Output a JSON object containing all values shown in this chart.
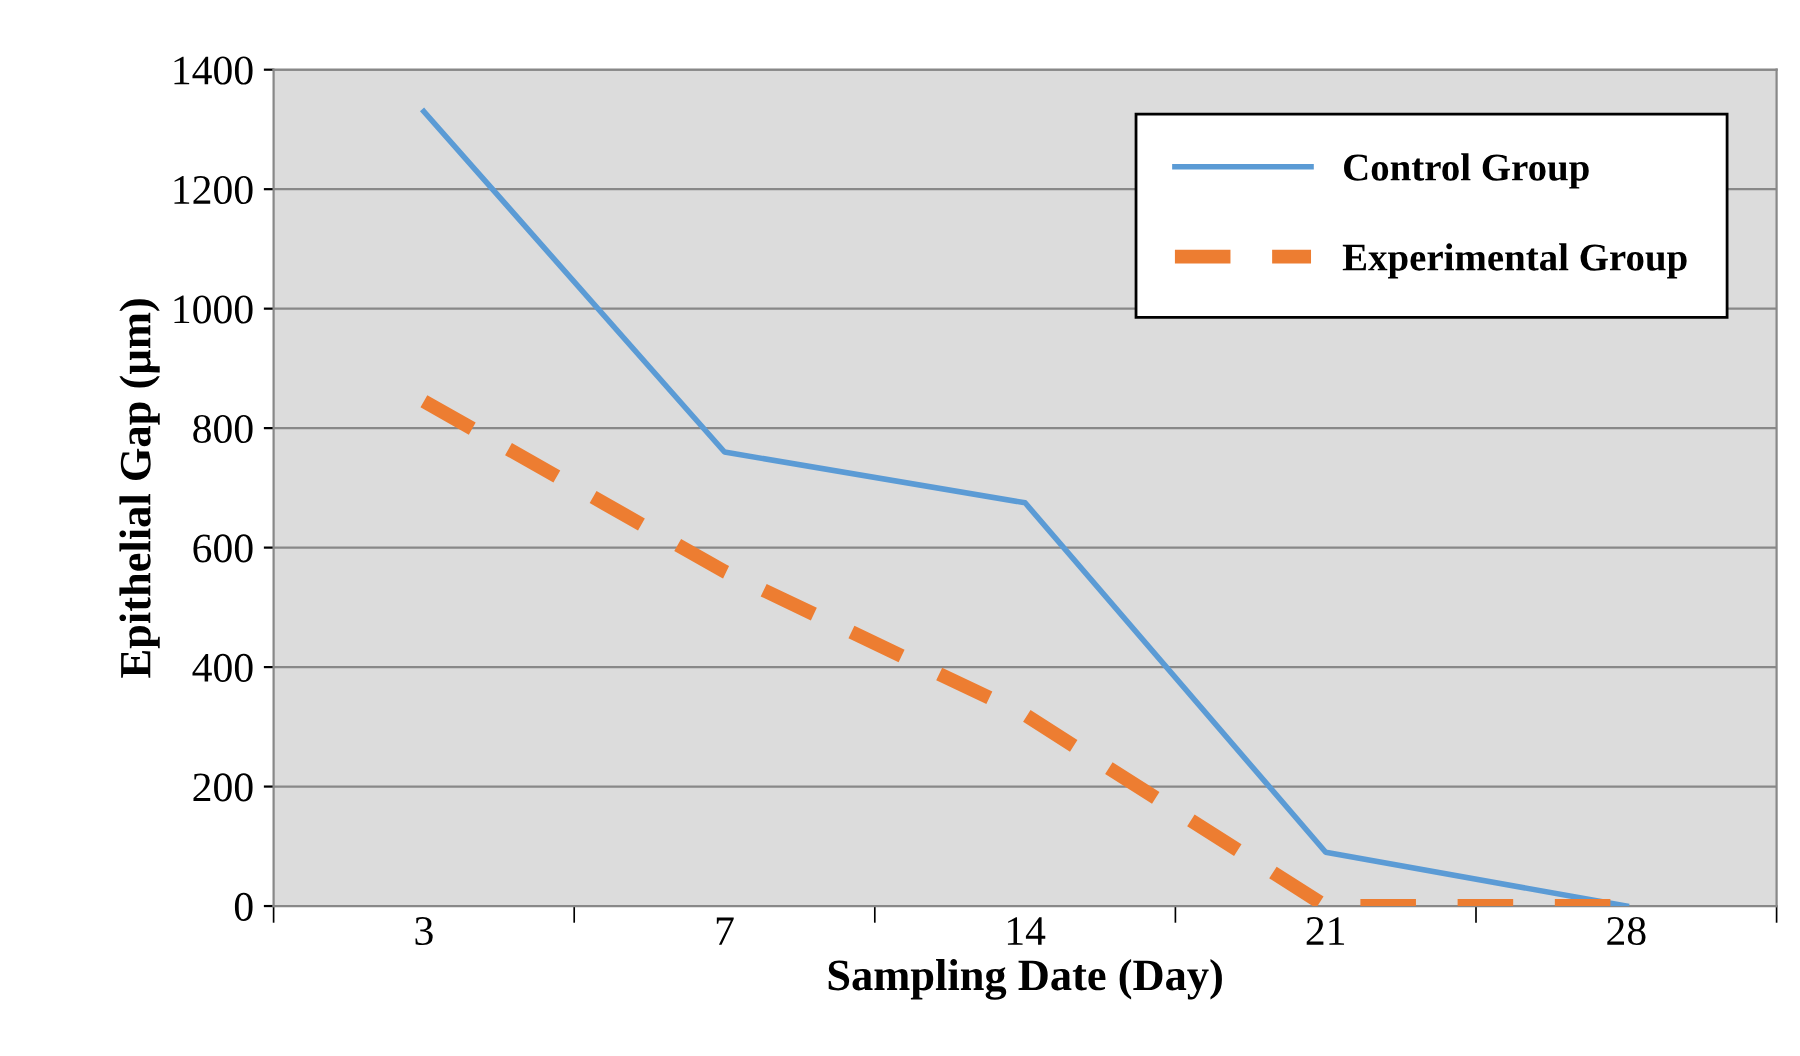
{
  "chart_data": {
    "type": "line",
    "xlabel": "Sampling Date (Day)",
    "ylabel": "Epithelial Gap (µm)",
    "categories": [
      "3",
      "7",
      "14",
      "21",
      "28"
    ],
    "series": [
      {
        "name": "Control Group",
        "color": "#5b9bd5",
        "values": [
          1330,
          760,
          675,
          90,
          0
        ],
        "line_style": "solid"
      },
      {
        "name": "Experimental Group",
        "color": "#ed7d31",
        "values": [
          845,
          560,
          320,
          0,
          0
        ],
        "line_style": "dashed"
      }
    ],
    "ylim": [
      0,
      1400
    ],
    "yticks": [
      0,
      200,
      400,
      600,
      800,
      1000,
      1200,
      1400
    ],
    "grid": "y",
    "legend": "top right"
  }
}
